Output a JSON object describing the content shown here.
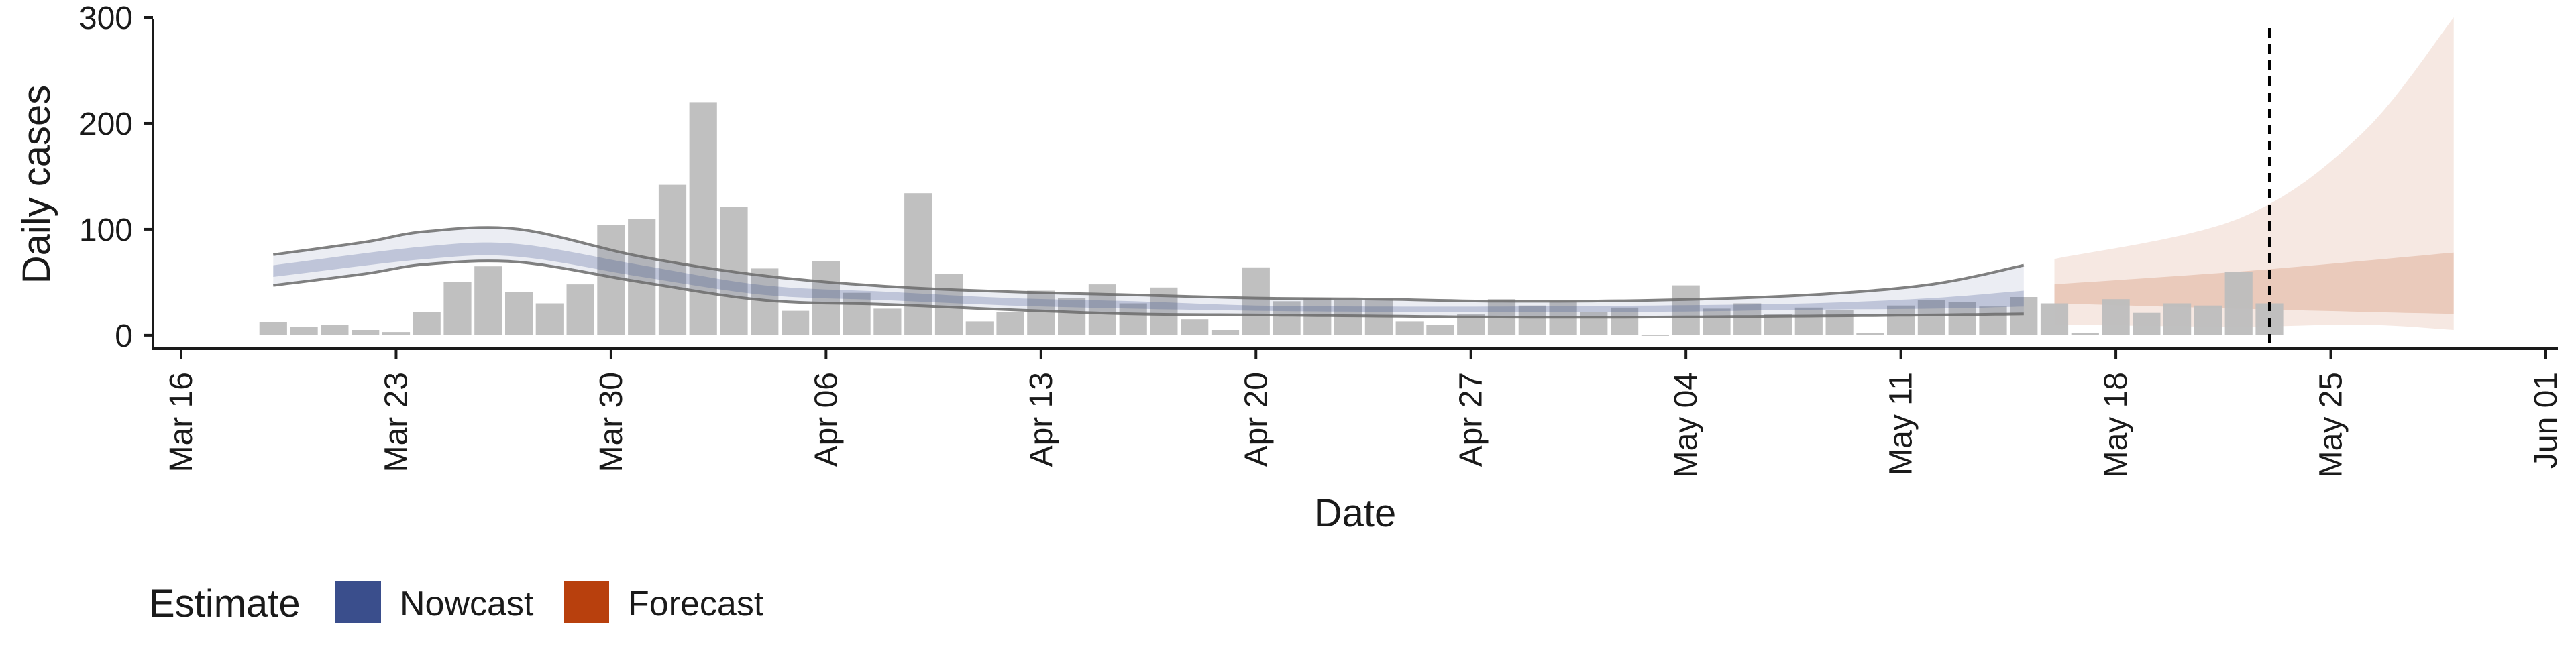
{
  "chart_data": {
    "type": "bar",
    "xlabel": "Date",
    "ylabel": "Daily cases",
    "ylim": [
      -14,
      300
    ],
    "yticks": [
      0,
      100,
      200,
      300
    ],
    "x_range": [
      "2020-03-16",
      "2020-06-01"
    ],
    "xticks": [
      {
        "date": "2020-03-16",
        "label": "Mar 16"
      },
      {
        "date": "2020-03-23",
        "label": "Mar 23"
      },
      {
        "date": "2020-03-30",
        "label": "Mar 30"
      },
      {
        "date": "2020-04-06",
        "label": "Apr 06"
      },
      {
        "date": "2020-04-13",
        "label": "Apr 13"
      },
      {
        "date": "2020-04-20",
        "label": "Apr 20"
      },
      {
        "date": "2020-04-27",
        "label": "Apr 27"
      },
      {
        "date": "2020-05-04",
        "label": "May 04"
      },
      {
        "date": "2020-05-11",
        "label": "May 11"
      },
      {
        "date": "2020-05-18",
        "label": "May 18"
      },
      {
        "date": "2020-05-25",
        "label": "May 25"
      },
      {
        "date": "2020-06-01",
        "label": "Jun 01"
      }
    ],
    "grid": false,
    "legend": {
      "title": "Estimate",
      "position": "bottom-left",
      "items": [
        {
          "name": "Nowcast",
          "color": "#3A4E8C"
        },
        {
          "name": "Forecast",
          "color": "#B8400D"
        }
      ]
    },
    "colors": {
      "bars": "#BDBDBD",
      "nowcast": "#3A4E8C",
      "forecast": "#B8400D",
      "band_line": "#6b6b6b",
      "vline": "#000000"
    },
    "bars": {
      "start_date": "2020-03-19",
      "values": [
        12,
        8,
        10,
        5,
        3,
        22,
        50,
        65,
        41,
        30,
        48,
        104,
        110,
        142,
        220,
        121,
        63,
        23,
        70,
        40,
        25,
        134,
        58,
        13,
        22,
        42,
        35,
        48,
        30,
        45,
        15,
        5,
        64,
        32,
        35,
        33,
        34,
        13,
        10,
        20,
        34,
        28,
        32,
        22,
        26,
        0,
        47,
        25,
        30,
        20,
        26,
        24,
        2,
        28,
        33,
        31,
        27,
        36,
        30,
        2,
        34,
        21,
        30,
        28,
        60,
        30
      ]
    },
    "vline_date": "2020-05-23",
    "nowcast": {
      "start_date": "2020-03-19",
      "end_date": "2020-05-15",
      "median": [
        [
          0,
          60
        ],
        [
          5,
          78
        ],
        [
          8,
          80
        ],
        [
          12,
          60
        ],
        [
          16,
          42
        ],
        [
          20,
          37
        ],
        [
          24,
          31
        ],
        [
          28,
          28
        ],
        [
          32,
          25
        ],
        [
          36,
          24
        ],
        [
          40,
          24
        ],
        [
          45,
          25
        ],
        [
          50,
          27
        ],
        [
          54,
          30
        ],
        [
          57,
          33
        ]
      ],
      "inner": {
        "lower": [
          [
            0,
            55
          ],
          [
            5,
            72
          ],
          [
            8,
            74
          ],
          [
            12,
            55
          ],
          [
            16,
            38
          ],
          [
            20,
            33
          ],
          [
            24,
            28
          ],
          [
            28,
            25
          ],
          [
            32,
            23
          ],
          [
            36,
            22
          ],
          [
            40,
            22
          ],
          [
            45,
            22
          ],
          [
            50,
            24
          ],
          [
            54,
            25
          ],
          [
            57,
            27
          ]
        ],
        "upper": [
          [
            0,
            66
          ],
          [
            5,
            84
          ],
          [
            8,
            86
          ],
          [
            12,
            66
          ],
          [
            16,
            47
          ],
          [
            20,
            41
          ],
          [
            24,
            35
          ],
          [
            28,
            32
          ],
          [
            32,
            28
          ],
          [
            36,
            27
          ],
          [
            40,
            27
          ],
          [
            45,
            28
          ],
          [
            50,
            30
          ],
          [
            54,
            35
          ],
          [
            57,
            42
          ]
        ]
      },
      "outer": {
        "lower": [
          [
            0,
            47
          ],
          [
            3,
            58
          ],
          [
            5,
            67
          ],
          [
            8,
            69
          ],
          [
            12,
            50
          ],
          [
            16,
            33
          ],
          [
            20,
            29
          ],
          [
            24,
            24
          ],
          [
            28,
            20
          ],
          [
            32,
            19
          ],
          [
            36,
            18
          ],
          [
            40,
            17
          ],
          [
            45,
            17
          ],
          [
            50,
            18
          ],
          [
            54,
            19
          ],
          [
            57,
            20
          ]
        ],
        "upper": [
          [
            0,
            76
          ],
          [
            3,
            88
          ],
          [
            5,
            98
          ],
          [
            8,
            100
          ],
          [
            12,
            74
          ],
          [
            16,
            56
          ],
          [
            20,
            46
          ],
          [
            24,
            41
          ],
          [
            28,
            38
          ],
          [
            32,
            35
          ],
          [
            36,
            34
          ],
          [
            40,
            32
          ],
          [
            45,
            33
          ],
          [
            50,
            38
          ],
          [
            54,
            48
          ],
          [
            57,
            66
          ]
        ]
      }
    },
    "forecast": {
      "start_date": "2020-05-16",
      "end_date": "2020-05-29",
      "median": [
        [
          0,
          40
        ],
        [
          6,
          50
        ],
        [
          10,
          55
        ],
        [
          13,
          58
        ]
      ],
      "inner": {
        "lower": [
          [
            0,
            30
          ],
          [
            6,
            25
          ],
          [
            10,
            22
          ],
          [
            13,
            20
          ]
        ],
        "upper": [
          [
            0,
            48
          ],
          [
            6,
            60
          ],
          [
            10,
            70
          ],
          [
            13,
            78
          ]
        ]
      },
      "outer": {
        "lower": [
          [
            0,
            10
          ],
          [
            6,
            8
          ],
          [
            10,
            10
          ],
          [
            13,
            5
          ]
        ],
        "upper": [
          [
            0,
            72
          ],
          [
            6,
            110
          ],
          [
            10,
            190
          ],
          [
            13,
            300
          ]
        ]
      }
    }
  }
}
